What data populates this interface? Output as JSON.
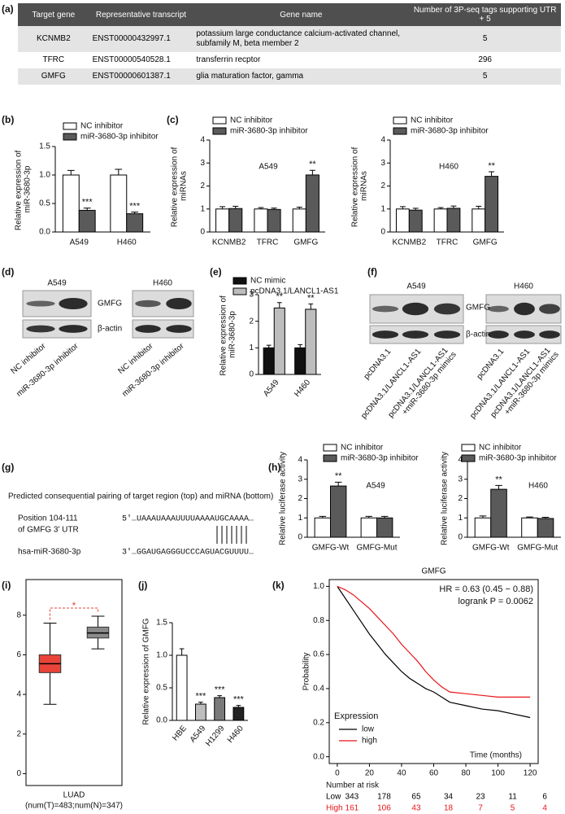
{
  "panel_labels": [
    "(a)",
    "(b)",
    "(c)",
    "(d)",
    "(e)",
    "(f)",
    "(g)",
    "(h)",
    "(i)",
    "(j)",
    "(k)"
  ],
  "table": {
    "header": [
      "Target gene",
      "Representative transcript",
      "Gene name",
      "Number of 3P-seq tags supporting UTR + 5"
    ],
    "rows": [
      [
        "KCNMB2",
        "ENST00000432997.1",
        "potassium large conductance calcium-activated channel, subfamily M, beta member 2",
        5
      ],
      [
        "TFRC",
        "ENST00000540528.1",
        "transferrin recptor",
        296
      ],
      [
        "GMFG",
        "ENST00000601387.1",
        "glia maturation factor, gamma",
        5
      ]
    ]
  },
  "blots": {
    "d": {
      "cell_lines": [
        "A549",
        "H460"
      ],
      "proteins": [
        "GMFG",
        "β-actin"
      ],
      "lanes": [
        "NC inhibitor",
        "miR-3680-3p inhibitor"
      ]
    },
    "f": {
      "cell_lines": [
        "A549",
        "H460"
      ],
      "proteins": [
        "GMFG",
        "β-actin"
      ],
      "lanes": [
        "pcDNA3.1",
        "pcDNA3.1/LANCL1-AS1",
        "pcDNA3.1/LANCL1-AS1 +miR-3680-3p mimics"
      ]
    }
  },
  "sequence": {
    "caption": "Predicted consequential pairing of target region (top) and miRNA (bottom)",
    "target_label": [
      "Position 104-111",
      "of GMFG 3' UTR"
    ],
    "target": "5'…UAAAUAAAUUUUAAAAUGCAAAA…",
    "mirna_label": "hsa-miR-3680-3p",
    "mirna": "3'…GGAUGAGGGUCCCAGUACGUUUU…"
  },
  "chart_data": [
    {
      "type": "bar",
      "y_label": "Relative expression of miR-3680-3p",
      "categories": [
        "A549",
        "H460"
      ],
      "series": [
        {
          "name": "NC inhibitor",
          "color": "#ffffff",
          "values": [
            1.0,
            1.0
          ],
          "errors": [
            0.08,
            0.1
          ]
        },
        {
          "name": "miR-3680-3p inhibitor",
          "color": "#5a5a5a",
          "values": [
            0.38,
            0.32
          ],
          "errors": [
            0.04,
            0.03
          ],
          "significance": [
            "***",
            "***"
          ]
        }
      ],
      "ylim": [
        0,
        1.5
      ],
      "yticks": [
        {
          "value": 0,
          "label": "0.0"
        },
        0.5,
        {
          "value": 1,
          "label": "1.0"
        },
        1.5
      ]
    },
    {
      "type": "bar",
      "title": "A549",
      "y_label": "Relative expression of miRNAs",
      "categories": [
        "KCNMB2",
        "TFRC",
        "GMFG"
      ],
      "series": [
        {
          "name": "NC inhibitor",
          "color": "#ffffff",
          "values": [
            1.0,
            1.0,
            1.0
          ],
          "errors": [
            0.1,
            0.06,
            0.08
          ]
        },
        {
          "name": "miR-3680-3p inhibitor",
          "color": "#5a5a5a",
          "values": [
            1.02,
            0.98,
            2.48
          ],
          "errors": [
            0.1,
            0.06,
            0.2
          ],
          "significance": [
            null,
            null,
            "**"
          ]
        }
      ],
      "ylim": [
        0,
        4
      ],
      "yticks": [
        0,
        1,
        2,
        3,
        4
      ]
    },
    {
      "type": "bar",
      "title": "H460",
      "y_label": "Relative expression of miRNAs",
      "categories": [
        "KCNMB2",
        "TFRC",
        "GMFG"
      ],
      "series": [
        {
          "name": "NC inhibitor",
          "color": "#ffffff",
          "values": [
            1.0,
            1.0,
            1.0
          ],
          "errors": [
            0.1,
            0.06,
            0.12
          ]
        },
        {
          "name": "miR-3680-3p inhibitor",
          "color": "#5a5a5a",
          "values": [
            0.95,
            1.03,
            2.42
          ],
          "errors": [
            0.08,
            0.1,
            0.2
          ],
          "significance": [
            null,
            null,
            "**"
          ]
        }
      ],
      "ylim": [
        0,
        4
      ],
      "yticks": [
        0,
        1,
        2,
        3,
        4
      ]
    },
    {
      "type": "bar",
      "y_label": "Relative expression of miR-3680-3p",
      "categories": [
        "A549",
        "H460"
      ],
      "series": [
        {
          "name": "NC mimic",
          "color": "#111111",
          "values": [
            1.0,
            1.0
          ],
          "errors": [
            0.1,
            0.12
          ]
        },
        {
          "name": "pcDNA3.1/LANCL1-AS1",
          "color": "#bdbdbd",
          "values": [
            2.5,
            2.45
          ],
          "errors": [
            0.2,
            0.2
          ],
          "significance": [
            "**",
            "**"
          ]
        }
      ],
      "ylim": [
        0,
        3
      ],
      "yticks": [
        0,
        1,
        2,
        3
      ]
    },
    {
      "type": "bar",
      "title": "A549",
      "y_label": "Relative luciferase activity",
      "categories": [
        "GMFG-Wt",
        "GMFG-Mut"
      ],
      "series": [
        {
          "name": "NC inhibitor",
          "color": "#ffffff",
          "values": [
            1.0,
            1.0
          ],
          "errors": [
            0.08,
            0.08
          ]
        },
        {
          "name": "miR-3680-3p inhibitor",
          "color": "#5a5a5a",
          "values": [
            2.65,
            1.0
          ],
          "errors": [
            0.2,
            0.08
          ],
          "significance": [
            "**",
            null
          ]
        }
      ],
      "ylim": [
        0,
        4
      ],
      "yticks": [
        0,
        1,
        2,
        3,
        4
      ]
    },
    {
      "type": "bar",
      "title": "H460",
      "y_label": "Relative luciferase activity",
      "categories": [
        "GMFG-Wt",
        "GMFG-Mut"
      ],
      "series": [
        {
          "name": "NC inhibitor",
          "color": "#ffffff",
          "values": [
            1.0,
            1.0
          ],
          "errors": [
            0.1,
            0.05
          ]
        },
        {
          "name": "miR-3680-3p inhibitor",
          "color": "#5a5a5a",
          "values": [
            2.48,
            0.97
          ],
          "errors": [
            0.2,
            0.06
          ],
          "significance": [
            "**",
            null
          ]
        }
      ],
      "ylim": [
        0,
        4
      ],
      "yticks": [
        0,
        1,
        2,
        3,
        4
      ]
    },
    {
      "type": "box",
      "x_label": "LUAD",
      "x_sublabel": "(num(T)=483;num(N)=347)",
      "annotation": "*",
      "annotation_color": "#e8443a",
      "boxes": [
        {
          "color": "#e8443a",
          "whisker_low": 3.5,
          "q1": 5.1,
          "median": 5.55,
          "q3": 6.0,
          "whisker_high": 7.6
        },
        {
          "color": "#8a8a8a",
          "whisker_low": 6.3,
          "q1": 6.85,
          "median": 7.1,
          "q3": 7.4,
          "whisker_high": 7.95
        }
      ],
      "ylim": [
        -0.6,
        9.8
      ],
      "yticks": [
        0,
        2,
        4,
        6,
        8
      ]
    },
    {
      "type": "bar",
      "y_label": "Relative expression of GMFG",
      "categories": [
        "HBE",
        "A549",
        "H1299",
        "H460"
      ],
      "values": [
        1.0,
        0.25,
        0.35,
        0.2
      ],
      "errors": [
        0.1,
        0.03,
        0.03,
        0.03
      ],
      "colors": [
        "#ffffff",
        "#bdbdbd",
        "#7a7a7a",
        "#222222"
      ],
      "significance": [
        null,
        "***",
        "***",
        "***"
      ],
      "ylim": [
        0,
        1.5
      ],
      "yticks": [
        {
          "value": 0,
          "label": "0.0"
        },
        0.5,
        {
          "value": 1,
          "label": "1.0"
        },
        1.5
      ]
    },
    {
      "type": "line",
      "title": "GMFG",
      "x_label": "Time (months)",
      "y_label": "Probability",
      "annotations": [
        "HR = 0.63 (0.45 − 0.88)",
        "logrank P = 0.0062"
      ],
      "legend_title": "Expression",
      "x": [
        0,
        5,
        10,
        15,
        20,
        25,
        30,
        35,
        40,
        45,
        50,
        55,
        60,
        65,
        70,
        80,
        90,
        100,
        110,
        120
      ],
      "series": [
        {
          "name": "low",
          "color": "#000000",
          "values": [
            1.0,
            0.93,
            0.86,
            0.79,
            0.72,
            0.66,
            0.6,
            0.55,
            0.5,
            0.46,
            0.43,
            0.4,
            0.38,
            0.35,
            0.32,
            0.3,
            0.28,
            0.27,
            0.25,
            0.23
          ]
        },
        {
          "name": "high",
          "color": "#e8141a",
          "values": [
            1.0,
            0.98,
            0.95,
            0.91,
            0.87,
            0.82,
            0.77,
            0.72,
            0.66,
            0.61,
            0.56,
            0.5,
            0.45,
            0.41,
            0.38,
            0.37,
            0.36,
            0.35,
            0.35,
            0.35
          ]
        }
      ],
      "xlim": [
        -5,
        125
      ],
      "ylim": [
        -0.04,
        1.04
      ],
      "xticks": [
        0,
        20,
        40,
        60,
        80,
        100,
        120
      ],
      "yticks": [
        {
          "value": 0,
          "label": "0.0"
        },
        0.2,
        0.4,
        0.6,
        0.8,
        {
          "value": 1,
          "label": "1.0"
        }
      ],
      "risk_table": {
        "title": "Number at risk",
        "rows": [
          {
            "name": "Low",
            "color": "#000000",
            "values": [
              343,
              178,
              65,
              34,
              23,
              11,
              6
            ]
          },
          {
            "name": "High",
            "color": "#e8141a",
            "values": [
              161,
              106,
              43,
              18,
              7,
              5,
              4
            ]
          }
        ]
      }
    }
  ]
}
